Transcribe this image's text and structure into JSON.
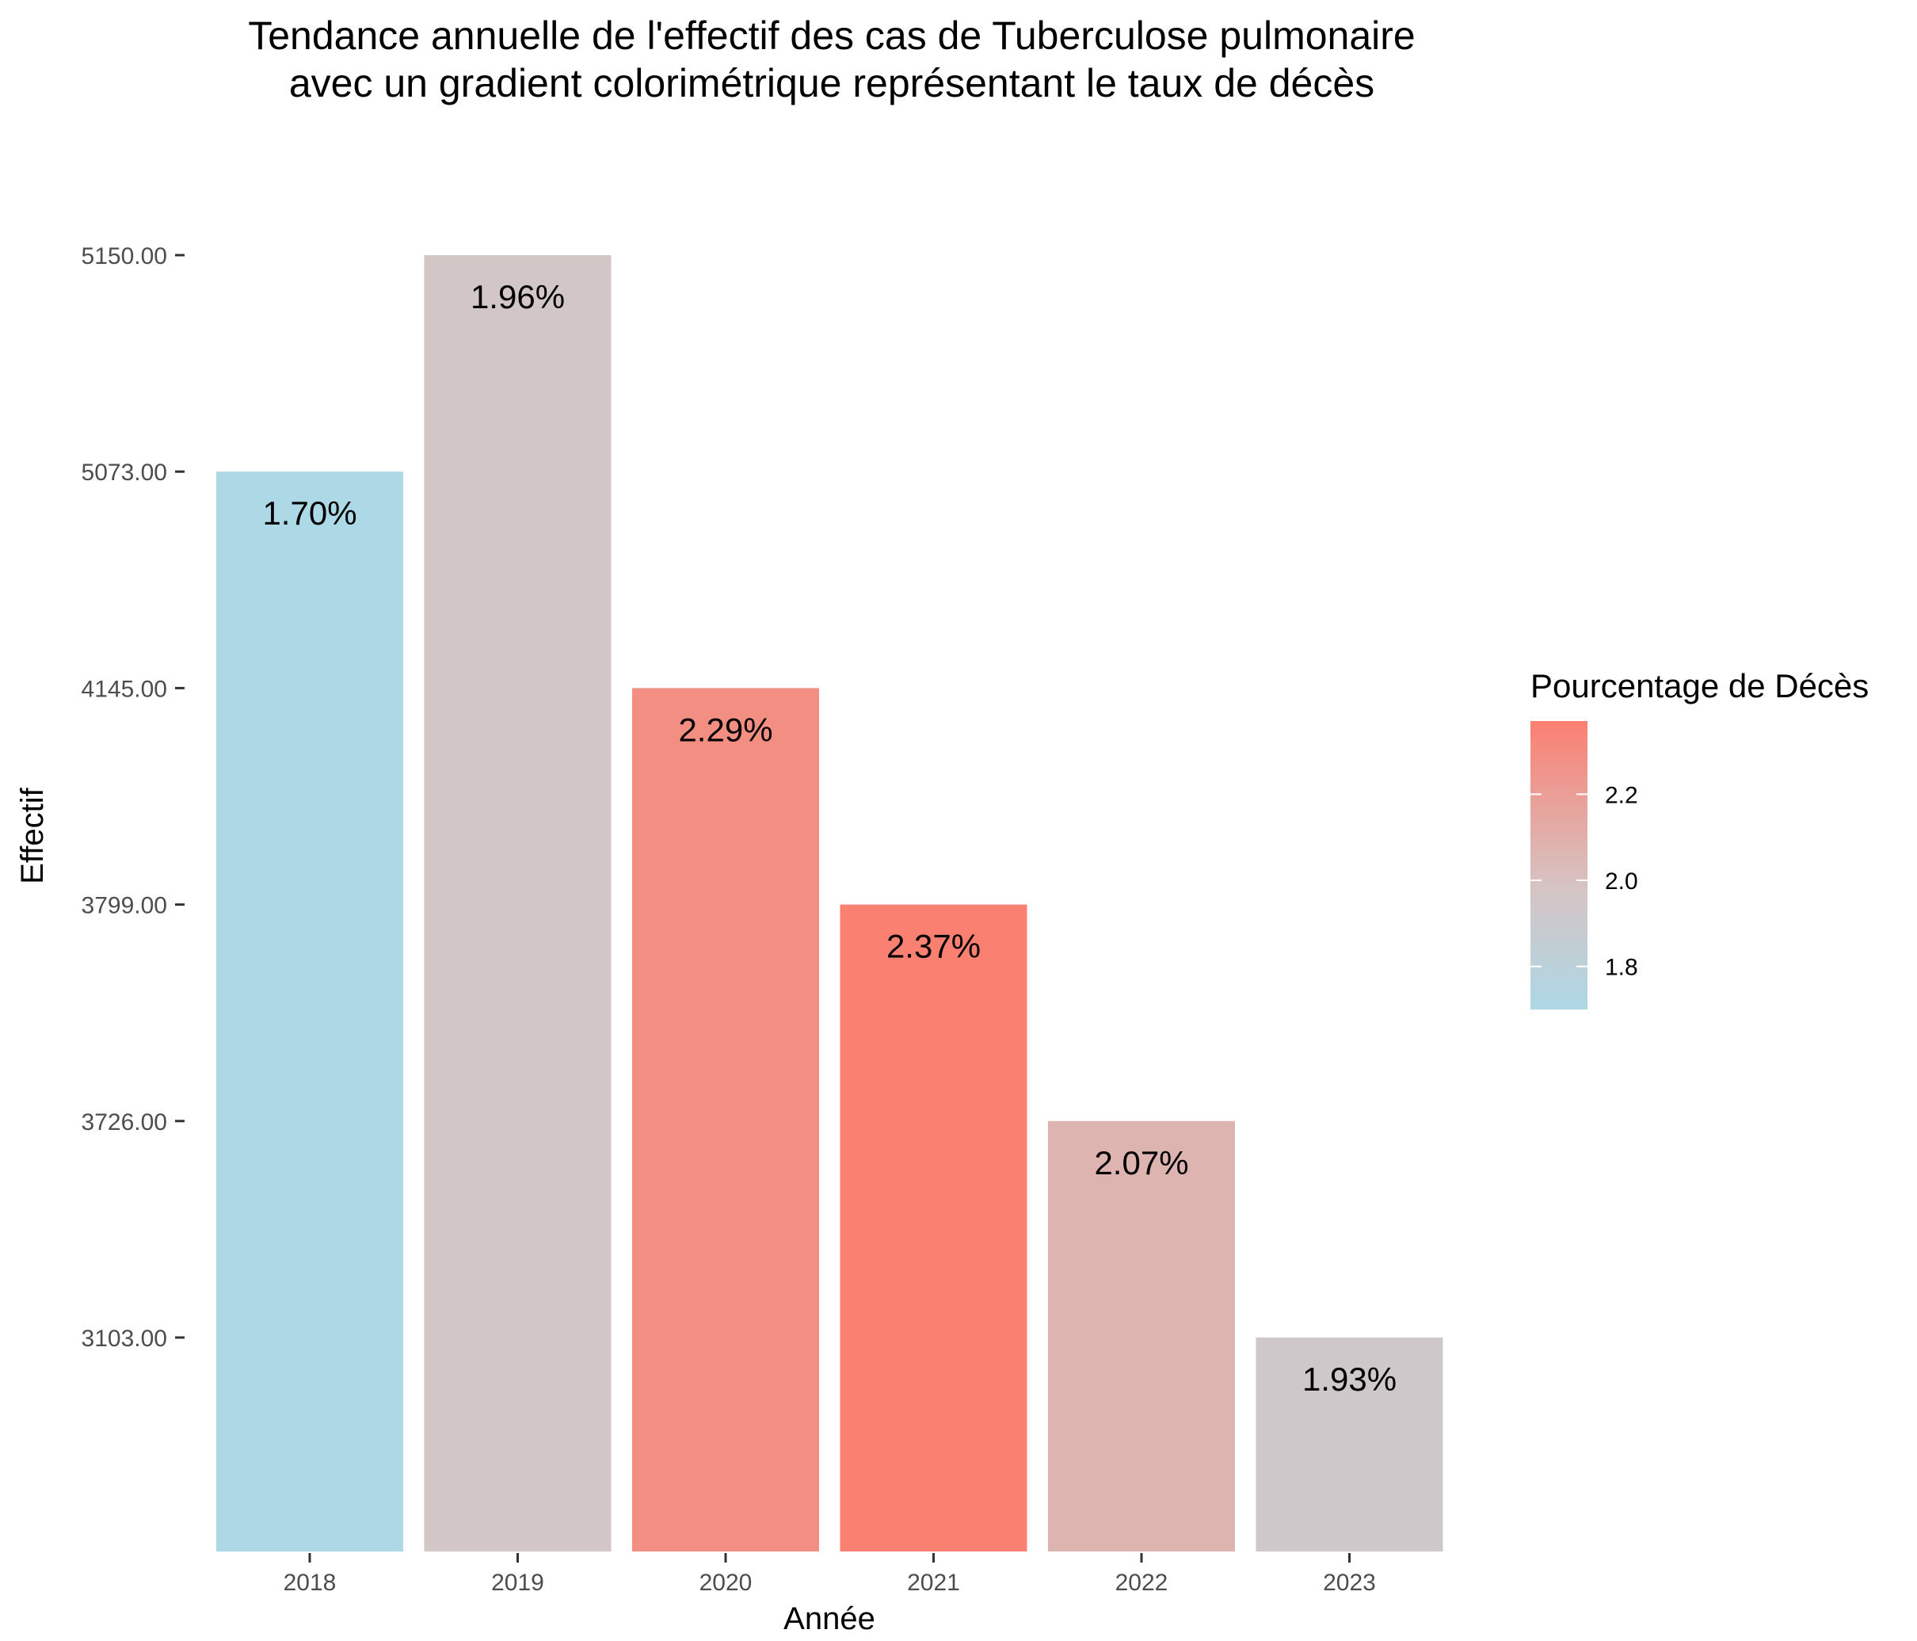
{
  "chart_data": {
    "type": "bar",
    "title_line1": "Tendance annuelle de l'effectif des cas de Tuberculose pulmonaire",
    "title_line2": "avec un gradient colorimétrique représentant le taux de décès",
    "xlabel": "Année",
    "ylabel": "Effectif",
    "categories": [
      "2018",
      "2019",
      "2020",
      "2021",
      "2022",
      "2023"
    ],
    "values": [
      5073,
      5150,
      4145,
      3799,
      3726,
      3103
    ],
    "y_tick_labels": [
      "5150.00",
      "5073.00",
      "4145.00",
      "3799.00",
      "3726.00",
      "3103.00"
    ],
    "y_scale": "discrete (equally spaced ticks, ordered by value)",
    "bar_labels": [
      "1.70%",
      "1.96%",
      "2.29%",
      "2.37%",
      "2.07%",
      "1.93%"
    ],
    "death_rate": [
      1.7,
      1.96,
      2.29,
      2.37,
      2.07,
      1.93
    ],
    "legend": {
      "title": "Pourcentage de Décès",
      "ticks": [
        "2.2",
        "2.0",
        "1.8"
      ],
      "tick_values": [
        2.2,
        2.0,
        1.8
      ],
      "range": [
        1.7,
        2.37
      ],
      "color_low": "#add8e6",
      "color_high": "#fa8072",
      "position": "right"
    },
    "grid": false
  }
}
